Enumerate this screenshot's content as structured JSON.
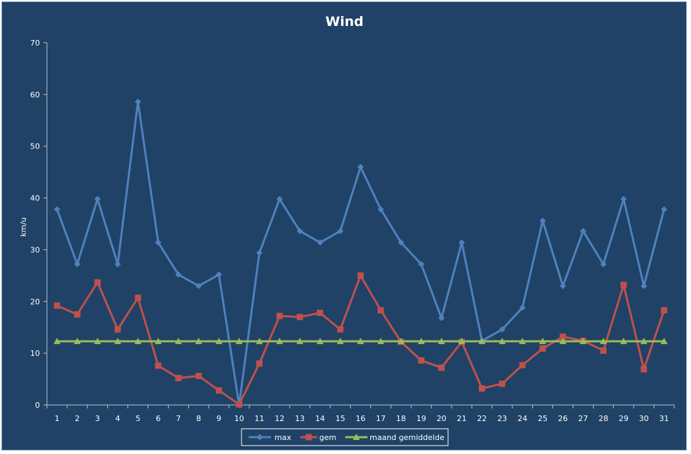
{
  "chart_data": {
    "type": "line",
    "title": "Wind",
    "xlabel": "",
    "ylabel": "km/u",
    "ylim": [
      0,
      70
    ],
    "yticks": [
      0,
      10,
      20,
      30,
      40,
      50,
      60,
      70
    ],
    "categories": [
      "1",
      "2",
      "3",
      "4",
      "5",
      "6",
      "7",
      "8",
      "9",
      "10",
      "11",
      "12",
      "13",
      "14",
      "15",
      "16",
      "17",
      "18",
      "19",
      "20",
      "21",
      "22",
      "23",
      "24",
      "25",
      "26",
      "27",
      "28",
      "29",
      "30",
      "31"
    ],
    "grid": false,
    "legend_position": "bottom",
    "series": [
      {
        "name": "max",
        "color": "#4f81bd",
        "marker": "diamond",
        "values": [
          37.8,
          27.2,
          39.8,
          27.2,
          58.6,
          31.4,
          25.2,
          23.0,
          25.2,
          0.0,
          29.4,
          39.8,
          33.6,
          31.4,
          33.6,
          46.0,
          37.8,
          31.4,
          27.2,
          16.8,
          31.4,
          12.4,
          14.6,
          18.8,
          35.6,
          23.0,
          33.6,
          27.2,
          39.8,
          23.0,
          37.8
        ]
      },
      {
        "name": "gem",
        "color": "#c0504d",
        "marker": "square",
        "values": [
          19.2,
          17.5,
          23.7,
          14.6,
          20.7,
          7.6,
          5.2,
          5.6,
          2.8,
          0.1,
          8.0,
          17.2,
          17.0,
          17.8,
          14.6,
          25.0,
          18.3,
          12.2,
          8.6,
          7.2,
          12.2,
          3.2,
          4.1,
          7.7,
          10.9,
          13.2,
          12.4,
          10.5,
          23.2,
          6.9,
          18.3
        ]
      },
      {
        "name": "maand gemiddelde",
        "color": "#9bbb59",
        "marker": "triangle",
        "values": [
          12.3,
          12.3,
          12.3,
          12.3,
          12.3,
          12.3,
          12.3,
          12.3,
          12.3,
          12.3,
          12.3,
          12.3,
          12.3,
          12.3,
          12.3,
          12.3,
          12.3,
          12.3,
          12.3,
          12.3,
          12.3,
          12.3,
          12.3,
          12.3,
          12.3,
          12.3,
          12.3,
          12.3,
          12.3,
          12.3,
          12.3
        ]
      }
    ]
  }
}
